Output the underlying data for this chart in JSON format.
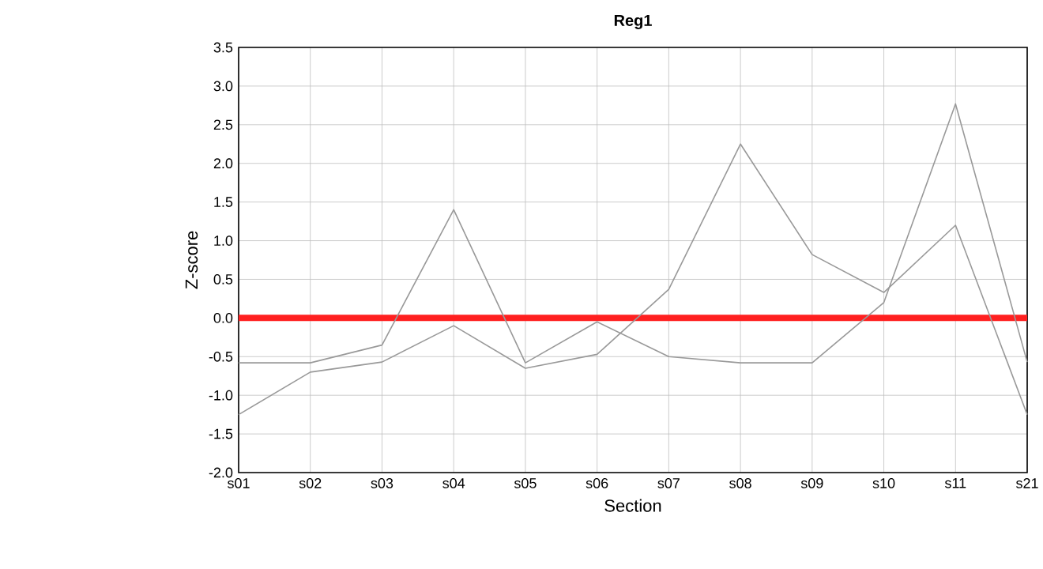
{
  "chart_data": {
    "type": "line",
    "title": "Reg1",
    "xlabel": "Section",
    "ylabel": "Z-score",
    "categories": [
      "s01",
      "s02",
      "s03",
      "s04",
      "s05",
      "s06",
      "s07",
      "s08",
      "s09",
      "s10",
      "s11",
      "s21"
    ],
    "series": [
      {
        "color": "#999999",
        "values": [
          -0.58,
          -0.58,
          -0.35,
          1.4,
          -0.58,
          -0.05,
          -0.5,
          -0.58,
          -0.58,
          0.2,
          2.77,
          -0.57
        ]
      },
      {
        "color": "#999999",
        "values": [
          -1.25,
          -0.7,
          -0.57,
          -0.1,
          -0.65,
          -0.47,
          0.37,
          2.25,
          0.82,
          0.33,
          1.2,
          -1.25
        ]
      }
    ],
    "ylim": [
      -2.0,
      3.5
    ],
    "yticks": [
      {
        "value": -2,
        "label": "-2.0"
      },
      {
        "value": -1.5,
        "label": "-1.5"
      },
      {
        "value": -1,
        "label": "-1.0"
      },
      {
        "value": -0.5,
        "label": "-0.5"
      },
      {
        "value": 0,
        "label": "0.0"
      },
      {
        "value": 0.5,
        "label": "0.5"
      },
      {
        "value": 1,
        "label": "1.0"
      },
      {
        "value": 1.5,
        "label": "1.5"
      },
      {
        "value": 2,
        "label": "2.0"
      },
      {
        "value": 2.5,
        "label": "2.5"
      },
      {
        "value": 3,
        "label": "3.0"
      },
      {
        "value": 3.5,
        "label": "3.5"
      }
    ],
    "ref_lines": [
      {
        "axis": "y",
        "value": 0,
        "color": "#ff2020"
      }
    ],
    "grid": true,
    "marker": "none",
    "line_style": "solid"
  }
}
